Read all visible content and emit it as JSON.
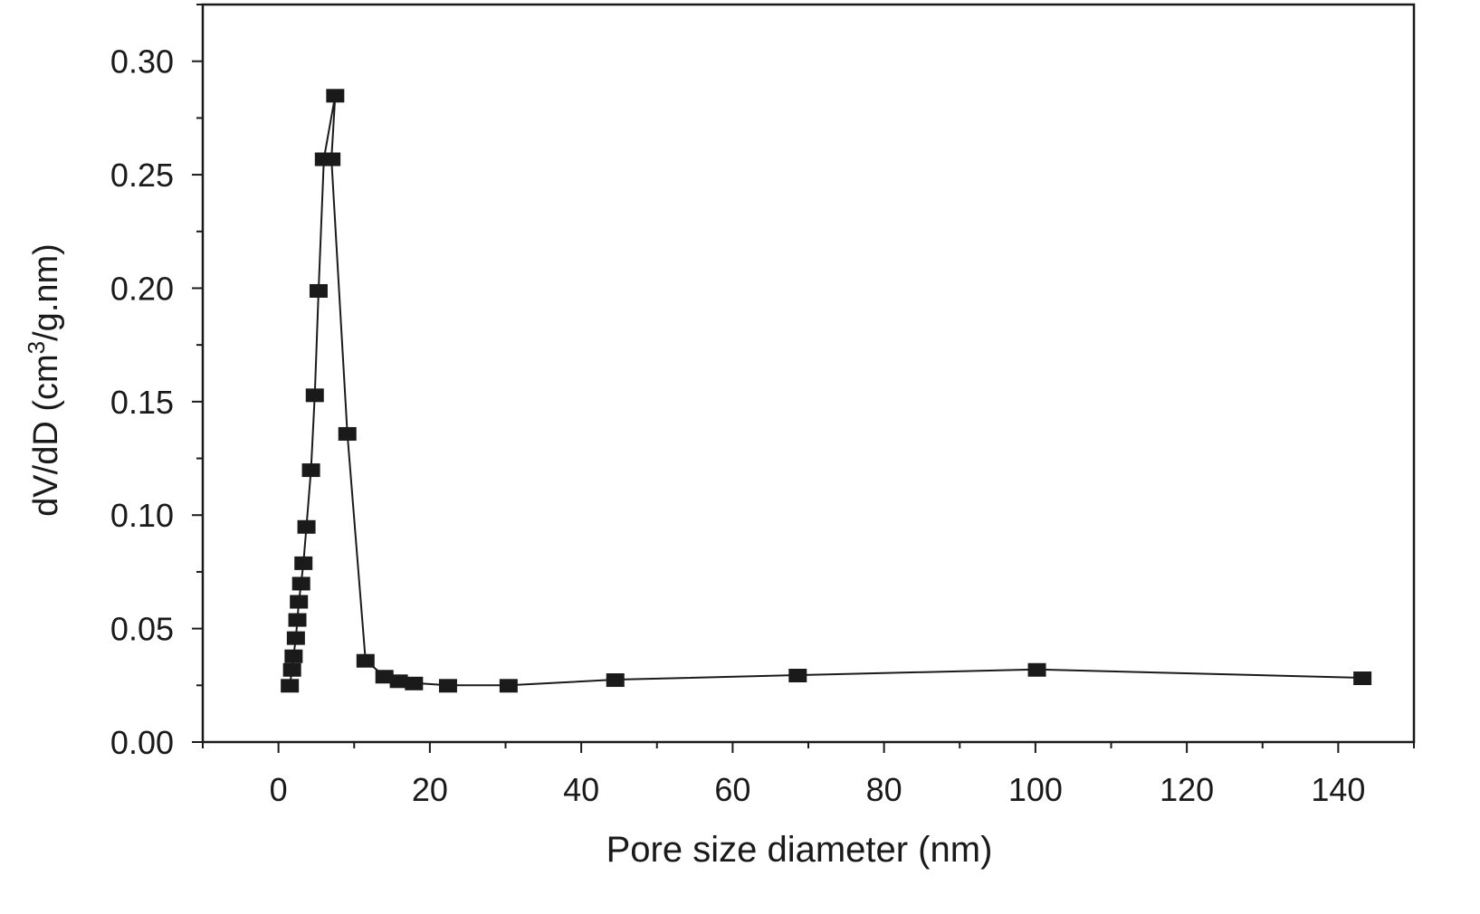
{
  "chart_data": {
    "type": "line",
    "title": "",
    "xlabel": "Pore size diameter (nm)",
    "ylabel_main": "dV/dD (cm",
    "ylabel_sup": "3",
    "ylabel_tail": "/g.nm)",
    "xlim": [
      -10,
      150
    ],
    "ylim": [
      0,
      0.325
    ],
    "xticks": [
      0,
      20,
      40,
      60,
      80,
      100,
      120,
      140
    ],
    "xtick_labels": [
      "0",
      "20",
      "40",
      "60",
      "80",
      "100",
      "120",
      "140"
    ],
    "yticks": [
      0,
      0.05,
      0.1,
      0.15,
      0.2,
      0.25,
      0.3
    ],
    "ytick_labels": [
      "0.00",
      "0.05",
      "0.10",
      "0.15",
      "0.20",
      "0.25",
      "0.30"
    ],
    "grid": false,
    "marker": "square",
    "color": "#1a1a1a",
    "series": [
      {
        "x": [
          1.5,
          1.8,
          2.0,
          2.3,
          2.5,
          2.7,
          3.0,
          3.3,
          3.7,
          4.3,
          4.8,
          5.3,
          6.0,
          7.5,
          7.0,
          9.1,
          11.5,
          14.0,
          15.9,
          17.9,
          22.4,
          30.4,
          44.5,
          68.6,
          100.2,
          143.2
        ],
        "y": [
          0.025,
          0.032,
          0.038,
          0.046,
          0.054,
          0.062,
          0.07,
          0.079,
          0.095,
          0.12,
          0.153,
          0.199,
          0.257,
          0.285,
          0.257,
          0.136,
          0.036,
          0.029,
          0.027,
          0.026,
          0.025,
          0.025,
          0.0275,
          0.0295,
          0.032,
          0.0283
        ]
      }
    ]
  }
}
